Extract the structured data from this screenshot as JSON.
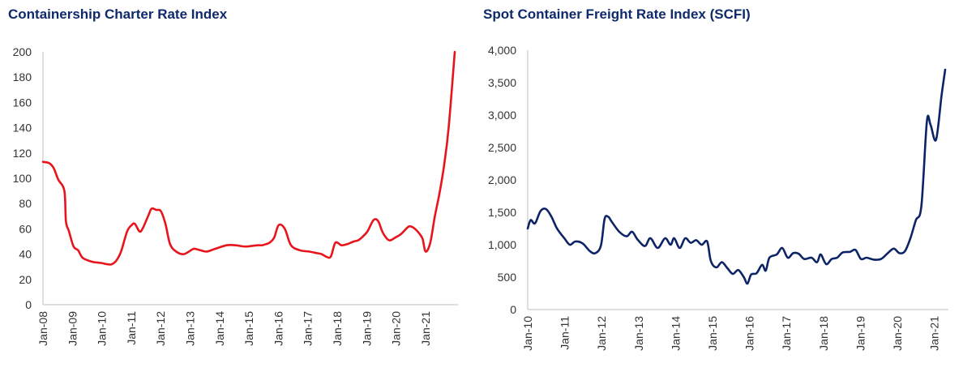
{
  "chart_data": [
    {
      "type": "line",
      "title": "Containership Charter Rate Index",
      "xlabel": "",
      "ylabel": "",
      "ylim": [
        0,
        200
      ],
      "yticks": [
        0,
        20,
        40,
        60,
        80,
        100,
        120,
        140,
        160,
        180,
        200
      ],
      "xticks": [
        "Jan-08",
        "Jan-09",
        "Jan-10",
        "Jan-11",
        "Jan-12",
        "Jan-13",
        "Jan-14",
        "Jan-15",
        "Jan-16",
        "Jan-17",
        "Jan-18",
        "Jan-19",
        "Jan-20",
        "Jan-21"
      ],
      "xlim": [
        2008.0,
        2021.45
      ],
      "grid": false,
      "color": "#e8141b",
      "series": [
        {
          "name": "",
          "x": [
            2008.0,
            2008.2,
            2008.35,
            2008.5,
            2008.7,
            2008.75,
            2008.85,
            2009.0,
            2009.15,
            2009.3,
            2009.6,
            2009.9,
            2010.1,
            2010.25,
            2010.4,
            2010.55,
            2010.75,
            2010.9,
            2011.0,
            2011.15,
            2011.25,
            2011.45,
            2011.55,
            2011.7,
            2011.85,
            2012.0,
            2012.15,
            2012.35,
            2012.6,
            2012.9,
            2013.0,
            2013.15,
            2013.35,
            2013.6,
            2014.0,
            2014.3,
            2014.6,
            2015.0,
            2015.15,
            2015.3,
            2015.4,
            2015.55,
            2015.7,
            2015.9,
            2016.1,
            2016.4,
            2016.7,
            2016.9,
            2017.1,
            2017.25,
            2017.4,
            2017.55,
            2017.75,
            2017.95,
            2018.15,
            2018.3,
            2018.45,
            2018.6,
            2018.8,
            2018.95,
            2019.1,
            2019.3,
            2019.5,
            2019.7,
            2019.9,
            2020.0,
            2020.15,
            2020.3,
            2020.4,
            2020.5,
            2020.65,
            2020.8,
            2020.95,
            2021.1,
            2021.25,
            2021.45
          ],
          "values": [
            113,
            112,
            108,
            99,
            90,
            66,
            58,
            46,
            43,
            37,
            34,
            33,
            32,
            32,
            35,
            42,
            58,
            63,
            64,
            58,
            60,
            71,
            76,
            75,
            74,
            64,
            48,
            42,
            40,
            44,
            44,
            43,
            42,
            44,
            47,
            47,
            46,
            47,
            47,
            48,
            49,
            53,
            63,
            60,
            47,
            43,
            42,
            41,
            40,
            38,
            38,
            49,
            47,
            48,
            50,
            51,
            54,
            58,
            67,
            66,
            57,
            51,
            53,
            56,
            61,
            62,
            60,
            56,
            52,
            42,
            49,
            70,
            88,
            110,
            140,
            200
          ]
        }
      ]
    },
    {
      "type": "line",
      "title": "Spot Container Freight Rate Index (SCFI)",
      "xlabel": "",
      "ylabel": "",
      "ylim": [
        0,
        4000
      ],
      "yticks": [
        "0",
        "500",
        "1,000",
        "1,500",
        "2,000",
        "2,500",
        "3,000",
        "3,500",
        "4,000"
      ],
      "xticks": [
        "Jan-10",
        "Jan-11",
        "Jan-12",
        "Jan-13",
        "Jan-14",
        "Jan-15",
        "Jan-16",
        "Jan-17",
        "Jan-18",
        "Jan-19",
        "Jan-20",
        "Jan-21"
      ],
      "xlim": [
        2010.0,
        2021.4
      ],
      "grid": false,
      "color": "#0c2466",
      "series": [
        {
          "name": "",
          "x": [
            2010.0,
            2010.08,
            2010.2,
            2010.35,
            2010.5,
            2010.65,
            2010.8,
            2011.0,
            2011.15,
            2011.3,
            2011.5,
            2011.7,
            2011.85,
            2012.0,
            2012.1,
            2012.2,
            2012.3,
            2012.5,
            2012.7,
            2012.85,
            2013.0,
            2013.2,
            2013.35,
            2013.55,
            2013.75,
            2013.9,
            2014.0,
            2014.15,
            2014.3,
            2014.45,
            2014.6,
            2014.75,
            2014.9,
            2015.0,
            2015.15,
            2015.3,
            2015.45,
            2015.6,
            2015.75,
            2015.9,
            2016.0,
            2016.1,
            2016.25,
            2016.4,
            2016.5,
            2016.6,
            2016.8,
            2016.95,
            2017.1,
            2017.25,
            2017.4,
            2017.55,
            2017.75,
            2017.9,
            2018.0,
            2018.15,
            2018.3,
            2018.45,
            2018.6,
            2018.8,
            2018.95,
            2019.1,
            2019.25,
            2019.45,
            2019.65,
            2019.85,
            2020.0,
            2020.15,
            2020.3,
            2020.45,
            2020.6,
            2020.75,
            2020.9,
            2021.0,
            2021.15,
            2021.3,
            2021.4
          ],
          "values": [
            1250,
            1380,
            1330,
            1520,
            1550,
            1430,
            1250,
            1100,
            1000,
            1050,
            1020,
            900,
            870,
            990,
            1400,
            1430,
            1350,
            1200,
            1130,
            1200,
            1080,
            980,
            1100,
            950,
            1100,
            1000,
            1100,
            950,
            1100,
            1030,
            1070,
            1000,
            1050,
            750,
            650,
            730,
            640,
            550,
            610,
            500,
            400,
            540,
            560,
            690,
            600,
            800,
            850,
            950,
            800,
            870,
            860,
            780,
            800,
            730,
            850,
            700,
            780,
            800,
            880,
            890,
            920,
            780,
            800,
            770,
            780,
            880,
            940,
            870,
            900,
            1100,
            1380,
            1600,
            2900,
            2850,
            2620,
            3300,
            3700
          ]
        }
      ]
    }
  ]
}
